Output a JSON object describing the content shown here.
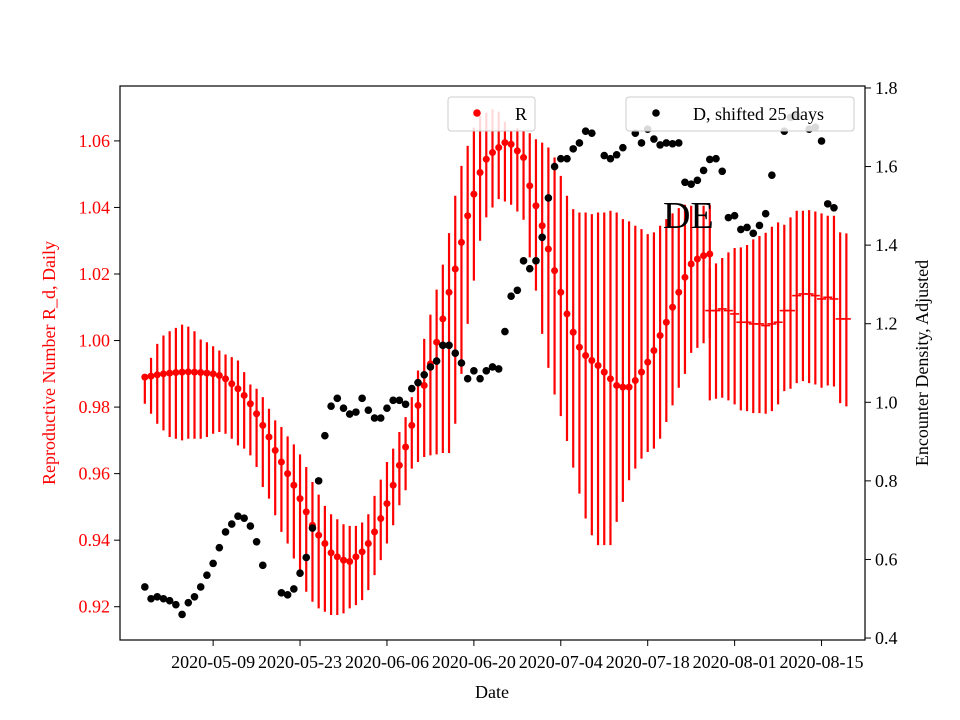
{
  "chart_data": {
    "type": "scatter",
    "title": "",
    "annotation": "DE",
    "xlabel": "Date",
    "ylabel_left": "Reproductive Number R_d, Daily",
    "ylabel_right": "Encounter Density, Adjusted",
    "x_range": [
      "2020-04-24",
      "2020-08-22"
    ],
    "ylim_left": [
      0.91,
      1.0765
    ],
    "ylim_right": [
      0.395,
      1.805
    ],
    "x_ticks": [
      "2020-05-09",
      "2020-05-23",
      "2020-06-06",
      "2020-06-20",
      "2020-07-04",
      "2020-07-18",
      "2020-08-01",
      "2020-08-15"
    ],
    "y_ticks_left": [
      0.92,
      0.94,
      0.96,
      0.98,
      1.0,
      1.02,
      1.04,
      1.06
    ],
    "y_ticks_left_labels": [
      "0.92",
      "0.94",
      "0.96",
      "0.98",
      "1.00",
      "1.02",
      "1.04",
      "1.06"
    ],
    "y_ticks_right": [
      0.4,
      0.6,
      0.8,
      1.0,
      1.2,
      1.4,
      1.6,
      1.8
    ],
    "y_ticks_right_labels": [
      "0.4",
      "0.6",
      "0.8",
      "1.0",
      "1.2",
      "1.4",
      "1.6",
      "1.8"
    ],
    "colors": {
      "r_series": "#ff0000",
      "d_series": "#000000",
      "axes": "#000000"
    },
    "legend": [
      {
        "label": "R",
        "color": "#ff0000",
        "placement": "top-center"
      },
      {
        "label": "D, shifted 25 days",
        "color": "#000000",
        "placement": "top-right"
      }
    ],
    "series": [
      {
        "name": "R",
        "axis": "left",
        "color": "#ff0000",
        "marker": "dot",
        "x_start": "2020-04-28",
        "x_step_days": 1,
        "values": [
          0.989,
          0.9893,
          0.9897,
          0.99,
          0.9902,
          0.9904,
          0.9905,
          0.9906,
          0.9905,
          0.9904,
          0.9902,
          0.99,
          0.9895,
          0.9885,
          0.987,
          0.9855,
          0.9835,
          0.981,
          0.978,
          0.9745,
          0.971,
          0.967,
          0.9635,
          0.96,
          0.9565,
          0.9525,
          0.9485,
          0.9445,
          0.9415,
          0.939,
          0.9362,
          0.935,
          0.934,
          0.9336,
          0.935,
          0.9365,
          0.939,
          0.9425,
          0.9465,
          0.951,
          0.9565,
          0.9625,
          0.968,
          0.9745,
          0.9805,
          0.9865,
          0.993,
          0.9995,
          1.0065,
          1.0145,
          1.0215,
          1.0295,
          1.0375,
          1.044,
          1.0505,
          1.0545,
          1.0565,
          1.058,
          1.0595,
          1.059,
          1.057,
          1.055,
          1.0465,
          1.0405,
          1.0345,
          1.0275,
          1.021,
          1.0145,
          1.008,
          1.0025,
          0.998,
          0.9955,
          0.994,
          0.9925,
          0.9905,
          0.9885,
          0.9865,
          0.986,
          0.986,
          0.988,
          0.9905,
          0.9935,
          0.997,
          1.0015,
          1.0055,
          1.01,
          1.0145,
          1.019,
          1.023,
          1.0245,
          1.0255,
          1.026
        ],
        "error_lower": [
          0.981,
          0.978,
          0.975,
          0.973,
          0.971,
          0.9705,
          0.97,
          0.9705,
          0.9705,
          0.9705,
          0.971,
          0.972,
          0.9725,
          0.972,
          0.9705,
          0.9685,
          0.9675,
          0.9655,
          0.962,
          0.956,
          0.9525,
          0.9475,
          0.9425,
          0.939,
          0.9345,
          0.929,
          0.9245,
          0.9215,
          0.9195,
          0.9185,
          0.9175,
          0.9175,
          0.918,
          0.9195,
          0.9205,
          0.922,
          0.925,
          0.9295,
          0.934,
          0.939,
          0.9445,
          0.9505,
          0.955,
          0.9615,
          0.9635,
          0.965,
          0.9655,
          0.9658,
          0.9662,
          0.9662,
          0.975,
          0.99,
          1.005,
          1.018,
          1.03,
          1.037,
          1.04,
          1.0425,
          1.0418,
          1.0408,
          1.0388,
          1.0363,
          1.025,
          1.015,
          1.002,
          0.9918,
          0.9838,
          0.9773,
          0.9698,
          0.9618,
          0.954,
          0.9465,
          0.9415,
          0.9385,
          0.9385,
          0.9385,
          0.9455,
          0.9515,
          0.958,
          0.9615,
          0.9645,
          0.9665,
          0.9675,
          0.9705,
          0.9755,
          0.9805,
          0.9858,
          0.99,
          0.9963,
          0.9978,
          0.9992,
          1.0008
        ],
        "error_upper": [
          0.9898,
          0.9948,
          0.999,
          1.0015,
          1.0028,
          1.0038,
          1.0048,
          1.0042,
          1.0028,
          1.0003,
          0.9995,
          0.9983,
          0.997,
          0.9958,
          0.995,
          0.994,
          0.9905,
          0.9868,
          0.9855,
          0.983,
          0.9795,
          0.976,
          0.974,
          0.9712,
          0.9688,
          0.9658,
          0.962,
          0.9575,
          0.9537,
          0.9503,
          0.9478,
          0.9463,
          0.9448,
          0.9443,
          0.9443,
          0.9453,
          0.9478,
          0.9533,
          0.9582,
          0.9635,
          0.9675,
          0.9725,
          0.977,
          0.983,
          0.991,
          1.0005,
          1.0078,
          1.0153,
          1.0228,
          1.0323,
          1.0435,
          1.0525,
          1.0585,
          1.064,
          1.0675,
          1.0685,
          1.0695,
          1.0688,
          1.0658,
          1.063,
          1.0638,
          1.063,
          1.0623,
          1.0605,
          1.0595,
          1.058,
          1.055,
          1.0495,
          1.0435,
          1.0395,
          1.0385,
          1.0385,
          1.038,
          1.0385,
          1.0385,
          1.039,
          1.0385,
          1.0365,
          1.0358,
          1.0345,
          1.0335,
          1.032,
          1.0325,
          1.0345,
          1.0365,
          1.0382,
          1.0398,
          1.0408,
          1.0405,
          1.0405,
          1.0405,
          1.0408
        ]
      },
      {
        "name": "R",
        "axis": "left",
        "color": "#ff0000",
        "marker": "dash",
        "x_start": "2020-07-28",
        "x_step_days": 1,
        "values": [
          1.009,
          1.009,
          1.0095,
          1.009,
          1.008,
          1.0055,
          1.0055,
          1.005,
          1.005,
          1.0045,
          1.005,
          1.0055,
          1.009,
          1.009,
          1.0135,
          1.014,
          1.014,
          1.0135,
          1.0125,
          1.013,
          1.0125,
          1.0065,
          1.0065
        ],
        "error_lower": [
          0.982,
          0.9825,
          0.9828,
          0.982,
          0.9808,
          0.979,
          0.9788,
          0.9782,
          0.9782,
          0.978,
          0.9788,
          0.9808,
          0.9848,
          0.9855,
          0.9872,
          0.9878,
          0.9872,
          0.9868,
          0.9858,
          0.9865,
          0.9862,
          0.9812,
          0.9802
        ],
        "error_upper": [
          1.0218,
          1.0232,
          1.0248,
          1.0265,
          1.0278,
          1.028,
          1.0287,
          1.0304,
          1.0314,
          1.0324,
          1.0342,
          1.0355,
          1.0348,
          1.037,
          1.039,
          1.039,
          1.0392,
          1.0388,
          1.0382,
          1.0375,
          1.0375,
          1.0325,
          1.0322
        ]
      },
      {
        "name": "D, shifted 25 days",
        "axis": "right",
        "color": "#000000",
        "marker": "dot",
        "points": [
          [
            "2020-04-28",
            0.53
          ],
          [
            "2020-04-29",
            0.5
          ],
          [
            "2020-04-30",
            0.505
          ],
          [
            "2020-05-01",
            0.5
          ],
          [
            "2020-05-02",
            0.495
          ],
          [
            "2020-05-03",
            0.485
          ],
          [
            "2020-05-04",
            0.46
          ],
          [
            "2020-05-05",
            0.49
          ],
          [
            "2020-05-06",
            0.505
          ],
          [
            "2020-05-07",
            0.53
          ],
          [
            "2020-05-08",
            0.56
          ],
          [
            "2020-05-09",
            0.59
          ],
          [
            "2020-05-10",
            0.63
          ],
          [
            "2020-05-11",
            0.67
          ],
          [
            "2020-05-12",
            0.69
          ],
          [
            "2020-05-13",
            0.71
          ],
          [
            "2020-05-14",
            0.705
          ],
          [
            "2020-05-15",
            0.685
          ],
          [
            "2020-05-16",
            0.645
          ],
          [
            "2020-05-17",
            0.585
          ],
          [
            "2020-05-20",
            0.515
          ],
          [
            "2020-05-21",
            0.51
          ],
          [
            "2020-05-22",
            0.525
          ],
          [
            "2020-05-23",
            0.565
          ],
          [
            "2020-05-24",
            0.605
          ],
          [
            "2020-05-25",
            0.68
          ],
          [
            "2020-05-26",
            0.8
          ],
          [
            "2020-05-27",
            0.915
          ],
          [
            "2020-05-28",
            0.99
          ],
          [
            "2020-05-29",
            1.01
          ],
          [
            "2020-05-30",
            0.985
          ],
          [
            "2020-05-31",
            0.97
          ],
          [
            "2020-06-01",
            0.975
          ],
          [
            "2020-06-02",
            1.01
          ],
          [
            "2020-06-03",
            0.98
          ],
          [
            "2020-06-04",
            0.96
          ],
          [
            "2020-06-05",
            0.96
          ],
          [
            "2020-06-06",
            0.985
          ],
          [
            "2020-06-07",
            1.005
          ],
          [
            "2020-06-08",
            1.005
          ],
          [
            "2020-06-09",
            0.995
          ],
          [
            "2020-06-10",
            1.035
          ],
          [
            "2020-06-11",
            1.05
          ],
          [
            "2020-06-12",
            1.07
          ],
          [
            "2020-06-13",
            1.09
          ],
          [
            "2020-06-14",
            1.105
          ],
          [
            "2020-06-15",
            1.145
          ],
          [
            "2020-06-16",
            1.145
          ],
          [
            "2020-06-17",
            1.125
          ],
          [
            "2020-06-18",
            1.1
          ],
          [
            "2020-06-19",
            1.06
          ],
          [
            "2020-06-20",
            1.08
          ],
          [
            "2020-06-21",
            1.06
          ],
          [
            "2020-06-22",
            1.08
          ],
          [
            "2020-06-23",
            1.09
          ],
          [
            "2020-06-24",
            1.085
          ],
          [
            "2020-06-25",
            1.18
          ],
          [
            "2020-06-26",
            1.27
          ],
          [
            "2020-06-27",
            1.285
          ],
          [
            "2020-06-28",
            1.36
          ],
          [
            "2020-06-29",
            1.34
          ],
          [
            "2020-06-30",
            1.36
          ],
          [
            "2020-07-01",
            1.42
          ],
          [
            "2020-07-02",
            1.52
          ],
          [
            "2020-07-03",
            1.6
          ],
          [
            "2020-07-04",
            1.62
          ],
          [
            "2020-07-05",
            1.62
          ],
          [
            "2020-07-06",
            1.645
          ],
          [
            "2020-07-07",
            1.66
          ],
          [
            "2020-07-08",
            1.69
          ],
          [
            "2020-07-09",
            1.685
          ],
          [
            "2020-07-11",
            1.628
          ],
          [
            "2020-07-12",
            1.62
          ],
          [
            "2020-07-13",
            1.63
          ],
          [
            "2020-07-14",
            1.648
          ],
          [
            "2020-07-16",
            1.685
          ],
          [
            "2020-07-17",
            1.66
          ],
          [
            "2020-07-18",
            1.695
          ],
          [
            "2020-07-19",
            1.67
          ],
          [
            "2020-07-20",
            1.655
          ],
          [
            "2020-07-21",
            1.66
          ],
          [
            "2020-07-22",
            1.658
          ],
          [
            "2020-07-23",
            1.66
          ],
          [
            "2020-07-24",
            1.56
          ],
          [
            "2020-07-25",
            1.555
          ],
          [
            "2020-07-26",
            1.565
          ],
          [
            "2020-07-27",
            1.59
          ],
          [
            "2020-07-28",
            1.618
          ],
          [
            "2020-07-29",
            1.62
          ],
          [
            "2020-07-30",
            1.588
          ],
          [
            "2020-07-31",
            1.47
          ],
          [
            "2020-08-01",
            1.475
          ],
          [
            "2020-08-02",
            1.44
          ],
          [
            "2020-08-03",
            1.445
          ],
          [
            "2020-08-04",
            1.43
          ],
          [
            "2020-08-05",
            1.45
          ],
          [
            "2020-08-06",
            1.48
          ],
          [
            "2020-08-07",
            1.578
          ],
          [
            "2020-08-09",
            1.69
          ],
          [
            "2020-08-10",
            1.725
          ],
          [
            "2020-08-11",
            1.73
          ],
          [
            "2020-08-13",
            1.695
          ],
          [
            "2020-08-14",
            1.7
          ],
          [
            "2020-08-15",
            1.665
          ],
          [
            "2020-08-16",
            1.505
          ],
          [
            "2020-08-17",
            1.495
          ]
        ]
      }
    ]
  }
}
